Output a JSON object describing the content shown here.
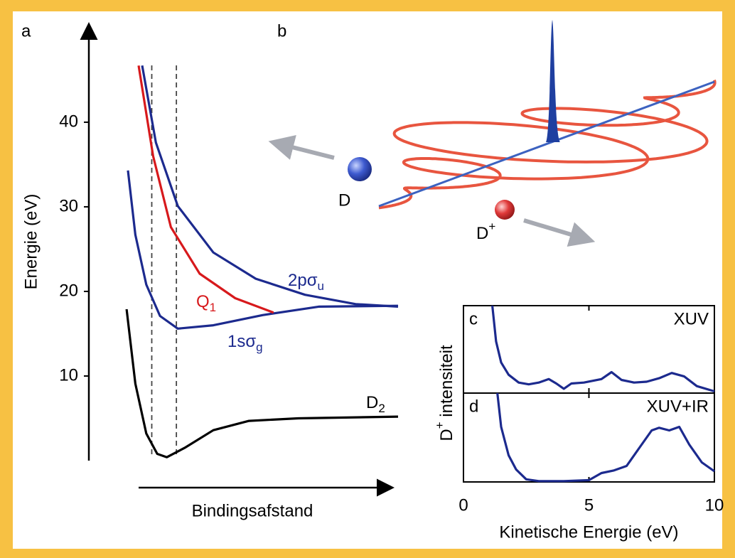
{
  "panel_b": {
    "label": "b",
    "atom": "D",
    "ion": "D",
    "ion_sup": "+"
  },
  "chart_data": [
    {
      "type": "line",
      "label": "a",
      "ylabel": "Energie (eV)",
      "xlabel": "Bindingsafstand",
      "xlim": [
        0,
        10
      ],
      "ylim": [
        0,
        51
      ],
      "yticks": [
        10,
        20,
        30,
        40
      ],
      "vlines": [
        1.0,
        1.9
      ],
      "series": [
        {
          "label": "D",
          "label_sub": "2",
          "color": "#000000",
          "x": [
            0.08,
            0.4,
            0.8,
            1.2,
            1.55,
            2.2,
            3.25,
            4.55,
            6.35,
            10
          ],
          "values": [
            17.9,
            9.1,
            3.2,
            0.8,
            0.4,
            1.5,
            3.6,
            4.7,
            5.0,
            5.2
          ]
        },
        {
          "label": "1sσ",
          "label_sub": "g",
          "color": "#1c2a8e",
          "x": [
            0.13,
            0.4,
            0.8,
            1.3,
            1.95,
            3.25,
            5.05,
            7.1,
            10
          ],
          "values": [
            34.3,
            26.7,
            20.8,
            17.1,
            15.6,
            16.0,
            17.2,
            18.2,
            18.3
          ]
        },
        {
          "label": "2pσ",
          "label_sub": "u",
          "color": "#1c2a8e",
          "x": [
            0.65,
            1.15,
            1.95,
            3.25,
            4.8,
            6.6,
            8.45,
            10
          ],
          "values": [
            46.7,
            37.6,
            30.1,
            24.6,
            21.5,
            19.6,
            18.5,
            18.2
          ]
        },
        {
          "label": "Q",
          "label_sub": "1",
          "color": "#d7191c",
          "x": [
            0.52,
            1.05,
            1.7,
            2.75,
            4.05,
            5.45
          ],
          "values": [
            46.7,
            36.0,
            27.6,
            22.1,
            19.2,
            17.5
          ]
        }
      ]
    },
    {
      "type": "line",
      "label": "c",
      "tag": "XUV",
      "xlim": [
        0,
        10
      ],
      "ylim": [
        0,
        1
      ],
      "xticks": [
        0,
        5,
        10
      ],
      "series": [
        {
          "color": "#1c2a8e",
          "x": [
            1.15,
            1.3,
            1.5,
            1.8,
            2.2,
            2.6,
            3.0,
            3.4,
            3.7,
            4.0,
            4.3,
            4.8,
            5.5,
            5.9,
            6.3,
            6.8,
            7.3,
            7.8,
            8.3,
            8.8,
            9.3,
            10
          ],
          "values": [
            1.0,
            0.59,
            0.35,
            0.21,
            0.12,
            0.1,
            0.12,
            0.16,
            0.11,
            0.05,
            0.11,
            0.12,
            0.16,
            0.24,
            0.15,
            0.12,
            0.13,
            0.17,
            0.23,
            0.19,
            0.08,
            0.02
          ]
        }
      ]
    },
    {
      "type": "line",
      "label": "d",
      "tag": "XUV+IR",
      "xlabel": "Kinetische Energie (eV)",
      "ylabel": "D",
      "ylabel_sup": "+",
      "ylabel_post": " intensiteit",
      "xlim": [
        0,
        10
      ],
      "ylim": [
        0,
        1
      ],
      "xticks": [
        0,
        5,
        10
      ],
      "series": [
        {
          "color": "#1c2a8e",
          "x": [
            1.35,
            1.5,
            1.8,
            2.1,
            2.5,
            3.0,
            4.0,
            5.0,
            5.5,
            6.0,
            6.5,
            7.0,
            7.5,
            7.8,
            8.2,
            8.6,
            9.0,
            9.5,
            10
          ],
          "values": [
            1.0,
            0.62,
            0.3,
            0.14,
            0.03,
            0.01,
            0.01,
            0.02,
            0.1,
            0.13,
            0.18,
            0.38,
            0.58,
            0.61,
            0.58,
            0.62,
            0.42,
            0.22,
            0.12
          ]
        }
      ]
    }
  ]
}
